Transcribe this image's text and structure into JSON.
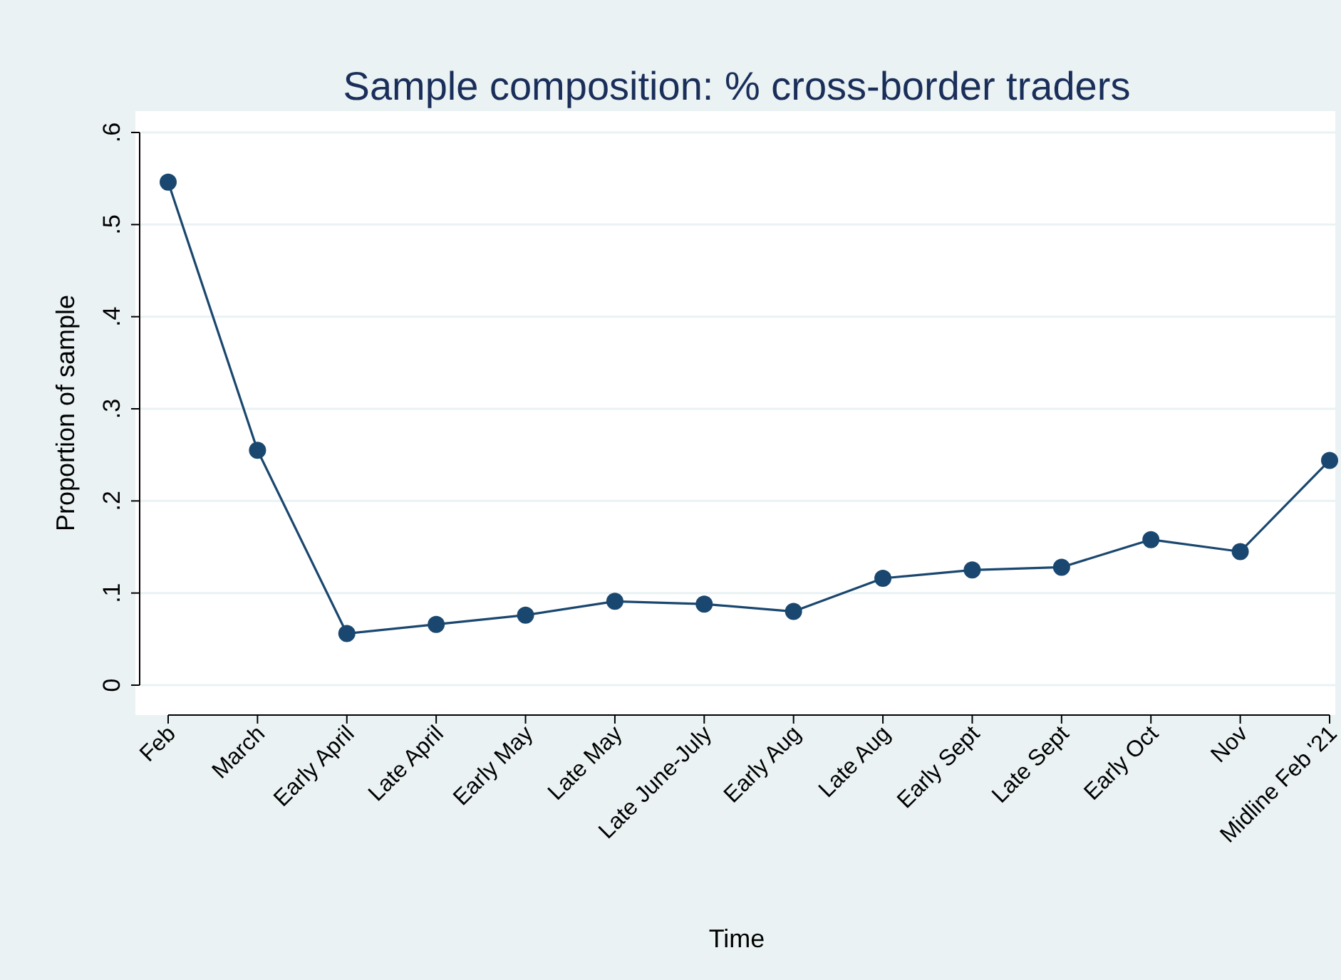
{
  "chart_data": {
    "type": "line",
    "title": "Sample composition: % cross-border traders",
    "xlabel": "Time",
    "ylabel": "Proportion of sample",
    "categories": [
      "Feb",
      "March",
      "Early April",
      "Late April",
      "Early May",
      "Late May",
      "Late June-July",
      "Early Aug",
      "Late Aug",
      "Early Sept",
      "Late Sept",
      "Early Oct",
      "Nov",
      "Midline Feb '21"
    ],
    "series": [
      {
        "color": "#1a476f",
        "values": [
          0.546,
          0.255,
          0.056,
          0.066,
          0.076,
          0.091,
          0.088,
          0.08,
          0.116,
          0.125,
          0.128,
          0.158,
          0.145,
          0.244
        ]
      }
    ],
    "ylim": [
      0,
      0.6
    ],
    "yticks": [
      0,
      {
        "value": 0.1,
        "label": ".1"
      },
      {
        "value": 0.2,
        "label": ".2"
      },
      {
        "value": 0.3,
        "label": ".3"
      },
      {
        "value": 0.4,
        "label": ".4"
      },
      {
        "value": 0.5,
        "label": ".5"
      },
      {
        "value": 0.6,
        "label": ".6"
      }
    ],
    "grid": "y",
    "marker": "circle",
    "line_style": "solid"
  }
}
